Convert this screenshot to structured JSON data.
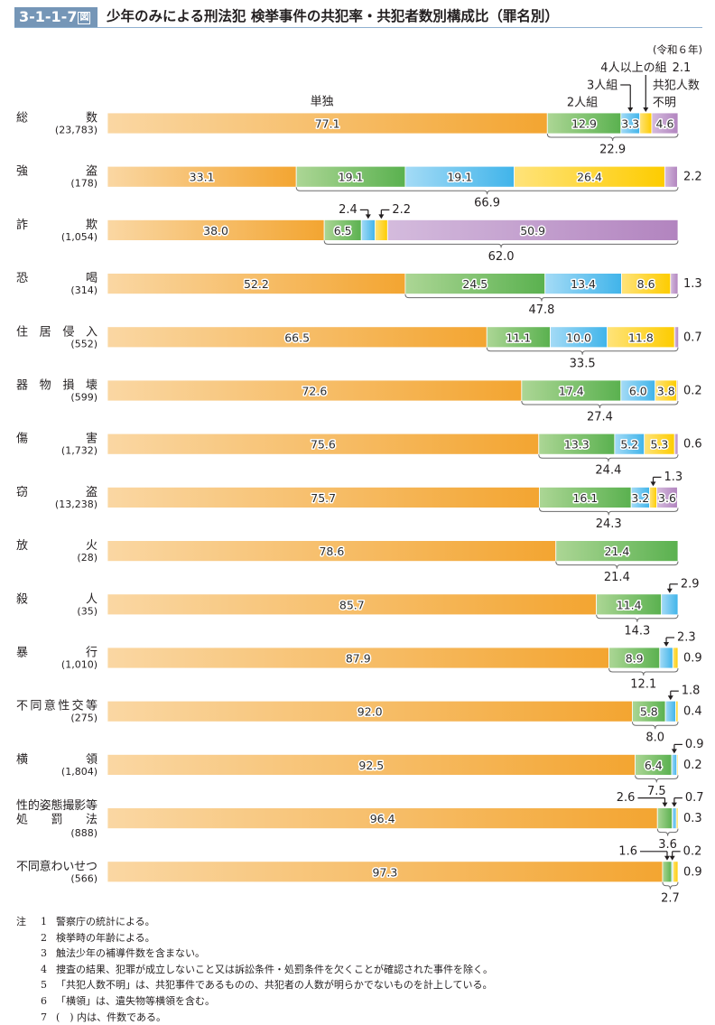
{
  "header": {
    "figure_number": "3-1-1-7",
    "figure_suffix": "図",
    "title": "少年のみによる刑法犯 検挙事件の共犯率・共犯者数別構成比（罪名別）"
  },
  "chart_data": {
    "type": "bar",
    "orientation": "horizontal stacked 100%",
    "title": "少年のみによる刑法犯 検挙事件の共犯率・共犯者数別構成比（罪名別）",
    "period_note": "(令和６年)",
    "xlabel": "",
    "ylabel": "",
    "xlim": [
      0,
      100
    ],
    "unit": "%",
    "grid": false,
    "legend_placement": "top-right (annotations over first bar)",
    "series": [
      {
        "key": "solo",
        "name": "単独",
        "color_light": "#fad7a3",
        "color_dark": "#f3a531"
      },
      {
        "key": "pair",
        "name": "2人組",
        "color_light": "#acd695",
        "color_dark": "#5ab14f"
      },
      {
        "key": "trio",
        "name": "3人組",
        "color_light": "#a4dbf6",
        "color_dark": "#40b4ea"
      },
      {
        "key": "four-plus",
        "name": "4人以上の組",
        "color_light": "#ffe37a",
        "color_dark": "#fdcc00"
      },
      {
        "key": "unknown",
        "name": "共犯人数不明",
        "color_light": "#d4bbdd",
        "color_dark": "#b284bf"
      }
    ],
    "legend": {
      "solo": "単独",
      "pair": "2人組",
      "trio": "3人組",
      "four_plus": "4人以上の組",
      "four_plus_value": "2.1",
      "unknown_line1": "共犯人数",
      "unknown_line2": "不明"
    },
    "rows": [
      {
        "category_lines": [
          "総数"
        ],
        "count": "(23,783)",
        "values": [
          77.1,
          12.9,
          3.3,
          2.1,
          4.6
        ],
        "labels": [
          "77.1",
          "12.9",
          "3.3",
          "2.1",
          "4.6"
        ],
        "label_styles": [
          "in",
          "in",
          "in",
          "legend",
          "in"
        ],
        "coop_total": "22.9"
      },
      {
        "category_lines": [
          "強盗"
        ],
        "count": "(178)",
        "values": [
          33.1,
          19.1,
          19.1,
          26.4,
          2.2
        ],
        "labels": [
          "33.1",
          "19.1",
          "19.1",
          "26.4",
          "2.2"
        ],
        "label_styles": [
          "in",
          "in",
          "in",
          "in",
          "right"
        ],
        "coop_total": "66.9"
      },
      {
        "category_lines": [
          "詐欺"
        ],
        "count": "(1,054)",
        "values": [
          38.0,
          6.5,
          2.4,
          2.2,
          50.9
        ],
        "labels": [
          "38.0",
          "6.5",
          "2.4",
          "2.2",
          "50.9"
        ],
        "label_styles": [
          "in",
          "in",
          "callout-left",
          "callout-right",
          "in"
        ],
        "coop_total": "62.0"
      },
      {
        "category_lines": [
          "恐喝"
        ],
        "count": "(314)",
        "values": [
          52.2,
          24.5,
          13.4,
          8.6,
          1.3
        ],
        "labels": [
          "52.2",
          "24.5",
          "13.4",
          "8.6",
          "1.3"
        ],
        "label_styles": [
          "in",
          "in",
          "in",
          "in",
          "right"
        ],
        "coop_total": "47.8"
      },
      {
        "category_lines": [
          "住居侵入"
        ],
        "count": "(552)",
        "values": [
          66.5,
          11.1,
          10.0,
          11.8,
          0.7
        ],
        "labels": [
          "66.5",
          "11.1",
          "10.0",
          "11.8",
          "0.7"
        ],
        "label_styles": [
          "in",
          "in",
          "in",
          "in",
          "right"
        ],
        "coop_total": "33.5"
      },
      {
        "category_lines": [
          "器物損壊"
        ],
        "count": "(599)",
        "values": [
          72.6,
          17.4,
          6.0,
          3.8,
          0.2
        ],
        "labels": [
          "72.6",
          "17.4",
          "6.0",
          "3.8",
          "0.2"
        ],
        "label_styles": [
          "in",
          "in",
          "in",
          "in",
          "right"
        ],
        "coop_total": "27.4"
      },
      {
        "category_lines": [
          "傷害"
        ],
        "count": "(1,732)",
        "values": [
          75.6,
          13.3,
          5.2,
          5.3,
          0.6
        ],
        "labels": [
          "75.6",
          "13.3",
          "5.2",
          "5.3",
          "0.6"
        ],
        "label_styles": [
          "in",
          "in",
          "in",
          "in",
          "right"
        ],
        "coop_total": "24.4"
      },
      {
        "category_lines": [
          "窃盗"
        ],
        "count": "(13,238)",
        "values": [
          75.7,
          16.1,
          3.2,
          1.3,
          3.6
        ],
        "labels": [
          "75.7",
          "16.1",
          "3.2",
          "1.3",
          "3.6"
        ],
        "label_styles": [
          "in",
          "in",
          "in",
          "callout-right",
          "in"
        ],
        "coop_total": "24.3"
      },
      {
        "category_lines": [
          "放火"
        ],
        "count": "(28)",
        "values": [
          78.6,
          21.4,
          0,
          0,
          0
        ],
        "labels": [
          "78.6",
          "21.4",
          "",
          "",
          ""
        ],
        "label_styles": [
          "in",
          "in",
          "none",
          "none",
          "none"
        ],
        "coop_total": "21.4"
      },
      {
        "category_lines": [
          "殺人"
        ],
        "count": "(35)",
        "values": [
          85.7,
          11.4,
          2.9,
          0,
          0
        ],
        "labels": [
          "85.7",
          "11.4",
          "2.9",
          "",
          ""
        ],
        "label_styles": [
          "in",
          "in",
          "callout-right",
          "none",
          "none"
        ],
        "coop_total": "14.3"
      },
      {
        "category_lines": [
          "暴行"
        ],
        "count": "(1,010)",
        "values": [
          87.9,
          8.9,
          2.3,
          0.9,
          0
        ],
        "labels": [
          "87.9",
          "8.9",
          "2.3",
          "0.9",
          ""
        ],
        "label_styles": [
          "in",
          "in",
          "callout-right",
          "right",
          "none"
        ],
        "coop_total": "12.1"
      },
      {
        "category_lines": [
          "不同意性交等"
        ],
        "count": "(275)",
        "values": [
          92.0,
          5.8,
          1.8,
          0.4,
          0
        ],
        "labels": [
          "92.0",
          "5.8",
          "1.8",
          "0.4",
          ""
        ],
        "label_styles": [
          "in",
          "in",
          "callout-right",
          "right",
          "none"
        ],
        "coop_total": "8.0"
      },
      {
        "category_lines": [
          "横領"
        ],
        "count": "(1,804)",
        "values": [
          92.5,
          6.4,
          0.9,
          0.2,
          0
        ],
        "labels": [
          "92.5",
          "6.4",
          "0.9",
          "0.2",
          ""
        ],
        "label_styles": [
          "in",
          "in",
          "callout-right",
          "right",
          "none"
        ],
        "coop_total": "7.5"
      },
      {
        "category_lines": [
          "性的姿態撮影等",
          "処罰法"
        ],
        "count": "(888)",
        "values": [
          96.4,
          2.6,
          0.7,
          0.3,
          0
        ],
        "labels": [
          "96.4",
          "2.6",
          "0.7",
          "0.3",
          ""
        ],
        "label_styles": [
          "in",
          "callout-left",
          "callout-right",
          "right",
          "none"
        ],
        "coop_total": "3.6"
      },
      {
        "category_lines": [
          "不同意わいせつ"
        ],
        "count": "(566)",
        "values": [
          97.3,
          1.6,
          0.2,
          0.9,
          0
        ],
        "labels": [
          "97.3",
          "1.6",
          "0.2",
          "0.9",
          ""
        ],
        "label_styles": [
          "in",
          "callout-left",
          "callout-right",
          "right",
          "none"
        ],
        "coop_total": "2.7"
      }
    ]
  },
  "notes": {
    "prefix": "注",
    "items": [
      {
        "num": "1",
        "text": "警察庁の統計による。"
      },
      {
        "num": "2",
        "text": "検挙時の年齢による。"
      },
      {
        "num": "3",
        "text": "触法少年の補導件数を含まない。"
      },
      {
        "num": "4",
        "text": "捜査の結果、犯罪が成立しないこと又は訴訟条件・処罰条件を欠くことが確認された事件を除く。"
      },
      {
        "num": "5",
        "text": "「共犯人数不明」は、共犯事件であるものの、共犯者の人数が明らかでないものを計上している。"
      },
      {
        "num": "6",
        "text": "「横領」は、遺失物等横領を含む。"
      },
      {
        "num": "7",
        "text": "(　) 内は、件数である。"
      }
    ]
  }
}
